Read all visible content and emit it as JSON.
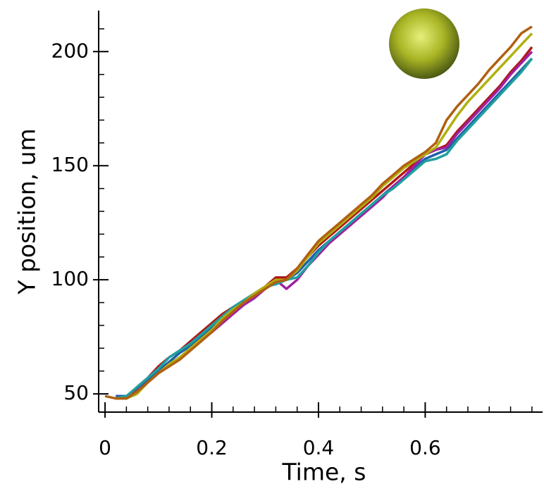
{
  "chart_data": {
    "type": "line",
    "xlabel": "Time, s",
    "ylabel": "Y position, um",
    "xlim": [
      -0.012,
      0.82
    ],
    "ylim": [
      42,
      218
    ],
    "xticks": [
      0,
      0.2,
      0.4,
      0.6
    ],
    "yticks": [
      50,
      100,
      150,
      200
    ],
    "xminor_ticks": [
      0.04,
      0.08,
      0.12,
      0.16,
      0.24,
      0.28,
      0.32,
      0.36,
      0.44,
      0.48,
      0.52,
      0.56,
      0.64,
      0.68,
      0.72,
      0.76,
      0.8
    ],
    "yminor_ticks": [
      60,
      70,
      80,
      90,
      110,
      120,
      130,
      140,
      160,
      170,
      180,
      190,
      210
    ],
    "x": [
      0,
      0.02,
      0.04,
      0.06,
      0.08,
      0.1,
      0.12,
      0.14,
      0.16,
      0.18,
      0.2,
      0.22,
      0.24,
      0.26,
      0.28,
      0.3,
      0.32,
      0.34,
      0.36,
      0.38,
      0.4,
      0.42,
      0.44,
      0.46,
      0.48,
      0.5,
      0.52,
      0.54,
      0.56,
      0.58,
      0.6,
      0.62,
      0.64,
      0.66,
      0.68,
      0.7,
      0.72,
      0.74,
      0.76,
      0.78,
      0.8
    ],
    "series": [
      {
        "color": "#1f5fa8",
        "values": [
          null,
          49,
          49,
          52,
          56,
          60,
          64,
          68,
          71,
          75,
          79,
          83,
          87,
          90,
          93,
          96,
          99,
          100,
          103,
          108,
          113,
          117,
          121,
          125,
          129,
          133,
          137,
          141,
          145,
          149,
          153,
          155,
          157,
          162,
          167,
          172,
          177,
          182,
          187,
          192,
          197
        ]
      },
      {
        "color": "#b01818",
        "values": [
          null,
          48,
          48,
          53,
          57,
          62,
          66,
          69,
          73,
          77,
          81,
          85,
          88,
          91,
          94,
          97,
          101,
          101,
          105,
          110,
          115,
          119,
          123,
          127,
          131,
          135,
          139,
          143,
          147,
          151,
          155,
          157,
          159,
          165,
          170,
          175,
          180,
          185,
          191,
          196,
          202
        ]
      },
      {
        "color": "#a020a0",
        "values": [
          null,
          48,
          48,
          51,
          55,
          59,
          63,
          66,
          70,
          74,
          77,
          81,
          85,
          89,
          92,
          96,
          100,
          96,
          100,
          106,
          111,
          116,
          120,
          124,
          128,
          132,
          136,
          141,
          145,
          150,
          155,
          157,
          158,
          164,
          169,
          174,
          179,
          184,
          190,
          195,
          200
        ]
      },
      {
        "color": "#20a0a0",
        "values": [
          null,
          48,
          49,
          53,
          57,
          61,
          66,
          69,
          72,
          76,
          80,
          84,
          88,
          91,
          94,
          97,
          98,
          100,
          101,
          106,
          112,
          117,
          121,
          125,
          129,
          133,
          137,
          140,
          144,
          148,
          152,
          153,
          155,
          161,
          166,
          171,
          176,
          181,
          186,
          191,
          197
        ]
      },
      {
        "color": "#b0b010",
        "values": [
          null,
          48,
          48,
          50,
          55,
          59,
          63,
          66,
          70,
          74,
          78,
          83,
          87,
          90,
          94,
          97,
          100,
          100,
          104,
          110,
          116,
          120,
          124,
          128,
          132,
          136,
          141,
          145,
          149,
          152,
          155,
          158,
          165,
          172,
          178,
          183,
          188,
          193,
          198,
          203,
          208
        ]
      },
      {
        "color": "#b06010",
        "values": [
          49,
          48,
          48,
          51,
          55,
          59,
          62,
          65,
          69,
          73,
          77,
          82,
          86,
          90,
          93,
          96,
          99,
          100,
          105,
          111,
          117,
          121,
          125,
          129,
          133,
          137,
          142,
          146,
          150,
          153,
          156,
          160,
          170,
          176,
          181,
          186,
          192,
          197,
          202,
          208,
          211
        ]
      }
    ]
  }
}
